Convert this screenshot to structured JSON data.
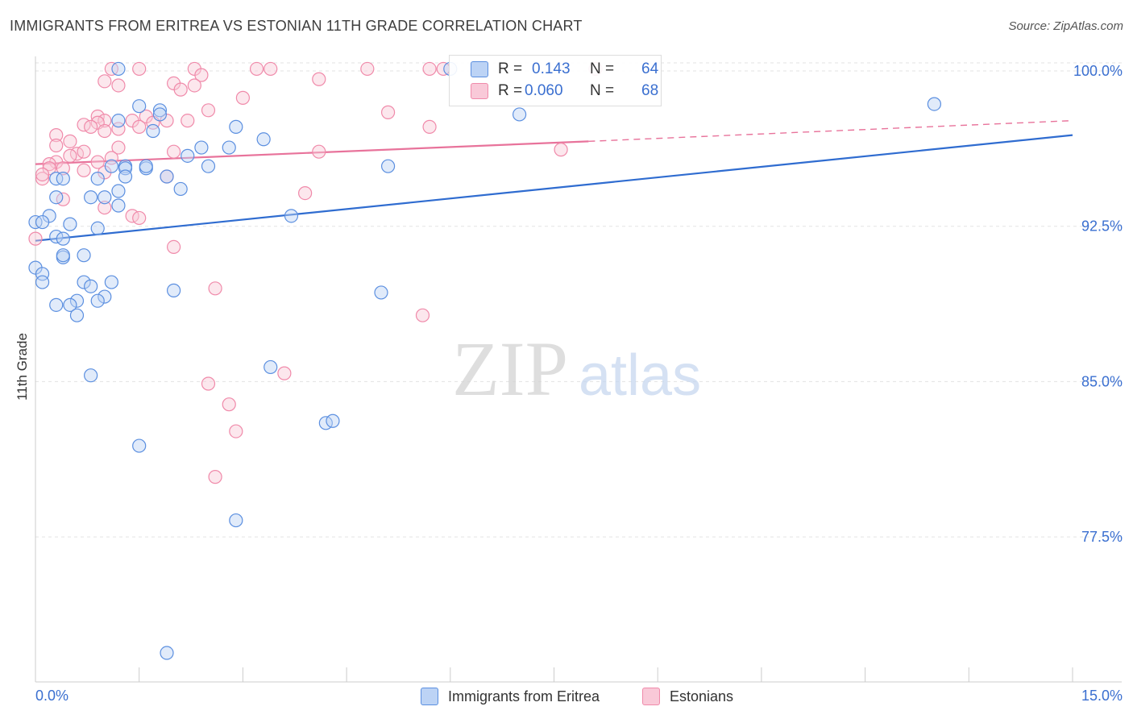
{
  "title": "IMMIGRANTS FROM ERITREA VS ESTONIAN 11TH GRADE CORRELATION CHART",
  "source": "Source: ZipAtlas.com",
  "watermark": {
    "zip": "ZIP",
    "atlas": "atlas"
  },
  "legend": {
    "rows": [
      {
        "r_label": "R =",
        "r_value": "0.143",
        "n_label": "N =",
        "n_value": "64"
      },
      {
        "r_label": "R =",
        "r_value": "0.060",
        "n_label": "N =",
        "n_value": "68"
      }
    ]
  },
  "colors": {
    "blue": "#5b8fe0",
    "blue_fill": "#bcd3f5",
    "blue_line": "#2f6cd0",
    "pink": "#f08aaa",
    "pink_fill": "#f9c9d8",
    "pink_line": "#e8739b",
    "axis_label": "#3a6fd0",
    "grid": "#e3e3e3"
  },
  "chart_data": {
    "type": "scatter",
    "title": "IMMIGRANTS FROM ERITREA VS ESTONIAN 11TH GRADE CORRELATION CHART",
    "xlabel": "",
    "ylabel": "11th Grade",
    "xlim": [
      0,
      15
    ],
    "ylim": [
      70.5,
      100.7
    ],
    "x_tick_labels": [
      "0.0%",
      "15.0%"
    ],
    "y_ticks": [
      77.5,
      85.0,
      92.5,
      100.0
    ],
    "y_tick_labels": [
      "77.5%",
      "85.0%",
      "92.5%",
      "100.0%"
    ],
    "grid": true,
    "legend_position": "top-center",
    "series": [
      {
        "name": "Immigrants from Eritrea",
        "color": "#5b8fe0",
        "r": 0.143,
        "n": 64,
        "trend": {
          "x0": 0.0,
          "y0": 91.8,
          "x1": 15.0,
          "y1": 96.9
        },
        "points": [
          [
            1.2,
            100.1
          ],
          [
            6.0,
            100.1
          ],
          [
            1.5,
            98.3
          ],
          [
            1.8,
            98.1
          ],
          [
            1.2,
            97.6
          ],
          [
            2.9,
            97.3
          ],
          [
            1.7,
            97.1
          ],
          [
            3.3,
            96.7
          ],
          [
            2.4,
            96.3
          ],
          [
            2.8,
            96.3
          ],
          [
            2.2,
            95.9
          ],
          [
            1.3,
            95.4
          ],
          [
            1.6,
            95.3
          ],
          [
            1.1,
            95.4
          ],
          [
            5.1,
            95.4
          ],
          [
            1.3,
            95.3
          ],
          [
            1.3,
            94.9
          ],
          [
            1.9,
            94.9
          ],
          [
            0.3,
            94.8
          ],
          [
            0.4,
            94.8
          ],
          [
            0.9,
            94.8
          ],
          [
            2.1,
            94.3
          ],
          [
            1.2,
            94.2
          ],
          [
            0.8,
            93.9
          ],
          [
            0.3,
            93.9
          ],
          [
            1.0,
            93.9
          ],
          [
            1.2,
            93.5
          ],
          [
            3.7,
            93.0
          ],
          [
            0.2,
            93.0
          ],
          [
            0.0,
            92.7
          ],
          [
            0.1,
            92.7
          ],
          [
            0.5,
            92.6
          ],
          [
            0.9,
            92.4
          ],
          [
            0.3,
            92.0
          ],
          [
            0.4,
            91.9
          ],
          [
            0.7,
            91.1
          ],
          [
            0.4,
            91.0
          ],
          [
            0.4,
            91.1
          ],
          [
            0.0,
            90.5
          ],
          [
            0.1,
            90.2
          ],
          [
            0.1,
            89.8
          ],
          [
            0.7,
            89.8
          ],
          [
            1.1,
            89.8
          ],
          [
            0.8,
            89.6
          ],
          [
            2.0,
            89.4
          ],
          [
            5.0,
            89.3
          ],
          [
            1.0,
            89.1
          ],
          [
            0.9,
            88.9
          ],
          [
            0.6,
            88.9
          ],
          [
            0.3,
            88.7
          ],
          [
            0.5,
            88.7
          ],
          [
            0.6,
            88.2
          ],
          [
            13.0,
            98.4
          ],
          [
            7.0,
            97.9
          ],
          [
            3.4,
            85.7
          ],
          [
            0.8,
            85.3
          ],
          [
            4.2,
            83.0
          ],
          [
            4.3,
            83.1
          ],
          [
            1.5,
            81.9
          ],
          [
            2.9,
            78.3
          ],
          [
            1.9,
            71.9
          ],
          [
            1.8,
            97.9
          ],
          [
            2.5,
            95.4
          ],
          [
            1.6,
            95.4
          ]
        ]
      },
      {
        "name": "Estonians",
        "color": "#f08aaa",
        "r": 0.06,
        "n": 68,
        "trend": {
          "x0": 0.0,
          "y0": 95.5,
          "x1": 8.0,
          "y1": 96.6,
          "dash_x1": 15.0,
          "dash_y1": 97.6
        },
        "points": [
          [
            1.1,
            100.1
          ],
          [
            1.5,
            100.1
          ],
          [
            2.3,
            100.1
          ],
          [
            3.2,
            100.1
          ],
          [
            3.4,
            100.1
          ],
          [
            4.8,
            100.1
          ],
          [
            5.7,
            100.1
          ],
          [
            5.9,
            100.1
          ],
          [
            8.1,
            100.1
          ],
          [
            2.4,
            99.8
          ],
          [
            4.1,
            99.6
          ],
          [
            1.0,
            99.5
          ],
          [
            2.0,
            99.4
          ],
          [
            2.3,
            99.3
          ],
          [
            1.2,
            99.3
          ],
          [
            2.1,
            99.1
          ],
          [
            3.0,
            98.7
          ],
          [
            2.5,
            98.1
          ],
          [
            5.1,
            98.0
          ],
          [
            0.9,
            97.8
          ],
          [
            1.6,
            97.8
          ],
          [
            1.9,
            97.6
          ],
          [
            1.7,
            97.5
          ],
          [
            1.0,
            97.6
          ],
          [
            0.7,
            97.4
          ],
          [
            0.9,
            97.5
          ],
          [
            2.2,
            97.6
          ],
          [
            1.4,
            97.6
          ],
          [
            0.8,
            97.3
          ],
          [
            5.7,
            97.3
          ],
          [
            1.2,
            97.2
          ],
          [
            1.0,
            97.1
          ],
          [
            0.3,
            96.9
          ],
          [
            0.5,
            96.6
          ],
          [
            0.3,
            96.4
          ],
          [
            2.0,
            96.1
          ],
          [
            4.1,
            96.1
          ],
          [
            7.6,
            96.2
          ],
          [
            0.6,
            96.0
          ],
          [
            0.7,
            96.1
          ],
          [
            1.2,
            96.3
          ],
          [
            0.5,
            95.9
          ],
          [
            0.3,
            95.6
          ],
          [
            0.9,
            95.6
          ],
          [
            1.1,
            95.8
          ],
          [
            0.2,
            95.5
          ],
          [
            0.2,
            95.3
          ],
          [
            0.7,
            95.2
          ],
          [
            1.0,
            95.1
          ],
          [
            0.1,
            94.8
          ],
          [
            1.9,
            94.9
          ],
          [
            3.9,
            94.1
          ],
          [
            0.4,
            93.8
          ],
          [
            1.0,
            93.4
          ],
          [
            1.4,
            93.0
          ],
          [
            1.5,
            92.9
          ],
          [
            0.0,
            91.9
          ],
          [
            2.0,
            91.5
          ],
          [
            2.6,
            89.5
          ],
          [
            5.6,
            88.2
          ],
          [
            3.6,
            85.4
          ],
          [
            2.5,
            84.9
          ],
          [
            2.8,
            83.9
          ],
          [
            2.9,
            82.6
          ],
          [
            2.6,
            80.4
          ],
          [
            0.1,
            95.0
          ],
          [
            0.4,
            95.3
          ],
          [
            1.5,
            97.3
          ]
        ]
      }
    ]
  }
}
